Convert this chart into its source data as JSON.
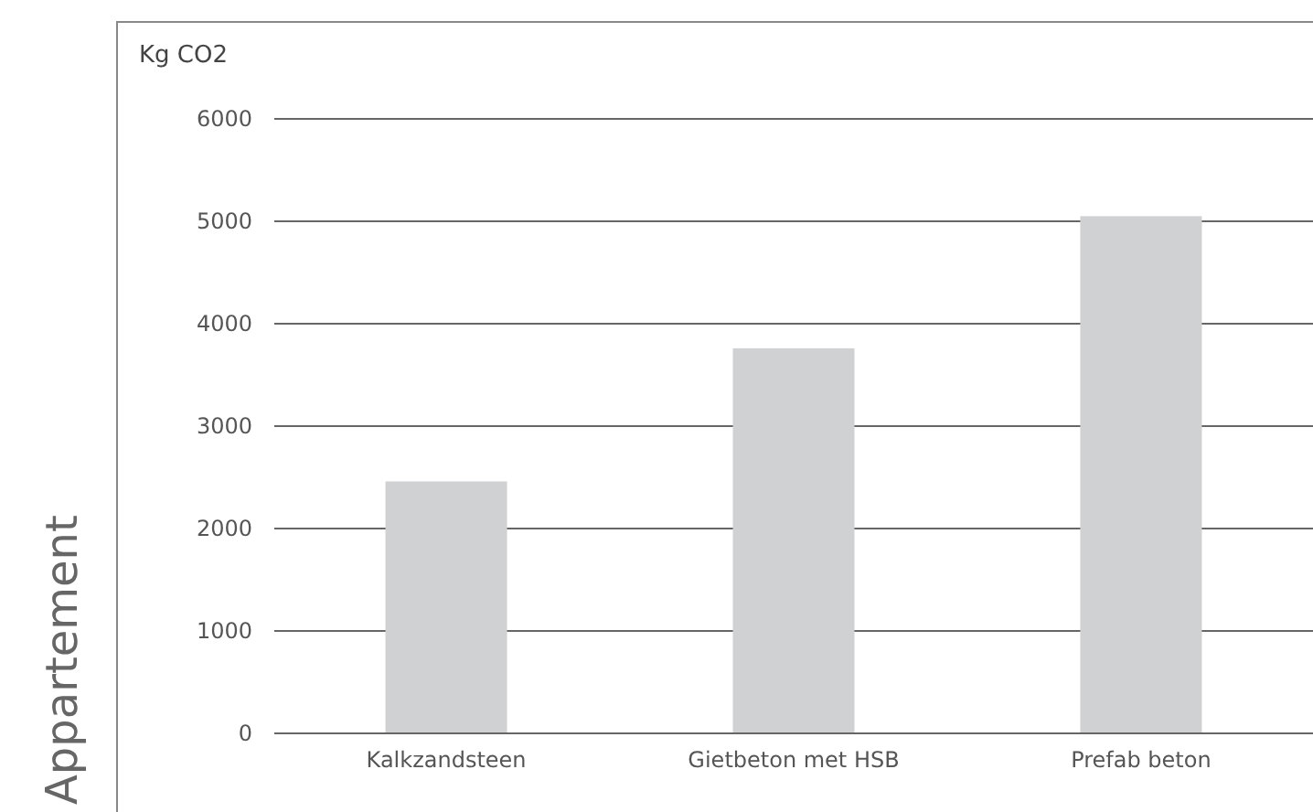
{
  "chart_data": {
    "type": "bar",
    "title": "Appartement",
    "ylabel": "Kg CO2",
    "categories": [
      "Kalkzandsteen",
      "Gietbeton met HSB",
      "Prefab beton"
    ],
    "values": [
      2460,
      3760,
      5050
    ],
    "color": "#d0d1d3",
    "ylim": [
      0,
      6000
    ],
    "yticks": [
      0,
      1000,
      2000,
      3000,
      4000,
      5000,
      6000
    ],
    "grid": "y"
  }
}
